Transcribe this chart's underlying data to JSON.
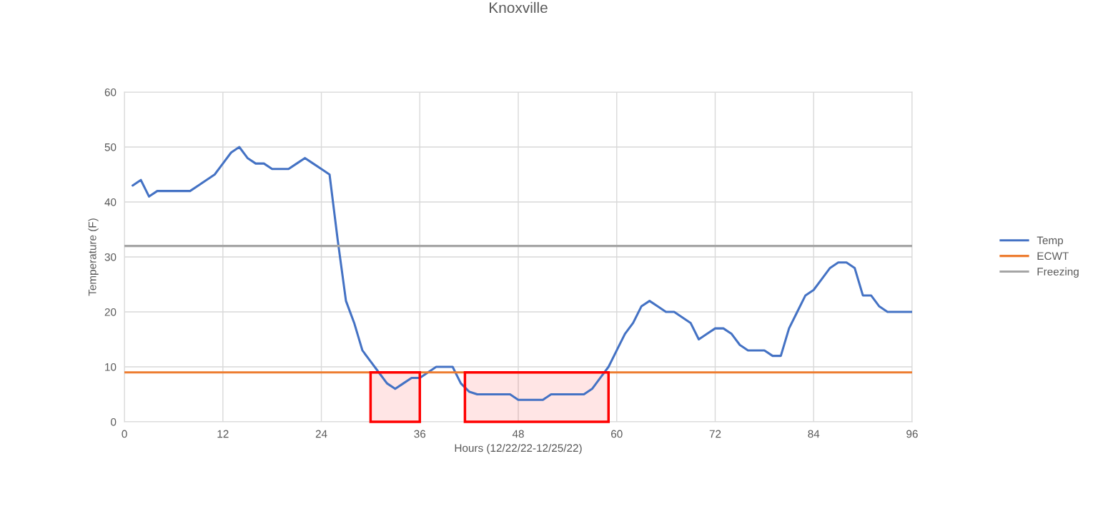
{
  "chart_data": {
    "type": "line",
    "title": "Knoxville",
    "xlabel": "Hours (12/22/22-12/25/22)",
    "ylabel": "Temperature (F)",
    "xlim": [
      0,
      96
    ],
    "xticks": [
      0,
      12,
      24,
      36,
      48,
      60,
      72,
      84,
      96
    ],
    "ylim": [
      0,
      60
    ],
    "yticks": [
      0,
      10,
      20,
      30,
      40,
      50,
      60
    ],
    "grid": true,
    "legend": "right",
    "line_style": "solid",
    "marker": "none",
    "series": [
      {
        "name": "Temp",
        "color": "#4472c4",
        "x": [
          1,
          2,
          3,
          4,
          5,
          6,
          7,
          8,
          9,
          10,
          11,
          12,
          13,
          14,
          15,
          16,
          17,
          18,
          19,
          20,
          21,
          22,
          23,
          24,
          25,
          26,
          27,
          28,
          29,
          30,
          31,
          32,
          33,
          34,
          35,
          36,
          37,
          38,
          39,
          40,
          41,
          42,
          43,
          44,
          45,
          46,
          47,
          48,
          49,
          50,
          51,
          52,
          53,
          54,
          55,
          56,
          57,
          58,
          59,
          60,
          61,
          62,
          63,
          64,
          65,
          66,
          67,
          68,
          69,
          70,
          71,
          72,
          73,
          74,
          75,
          76,
          77,
          78,
          79,
          80,
          81,
          82,
          83,
          84,
          85,
          86,
          87,
          88,
          89,
          90,
          91,
          92,
          93,
          94,
          95,
          96
        ],
        "values": [
          43,
          44,
          41,
          42,
          42,
          42,
          42,
          42,
          43,
          44,
          45,
          47,
          49,
          50,
          48,
          47,
          47,
          46,
          46,
          46,
          47,
          48,
          47,
          46,
          45,
          33,
          22,
          18,
          13,
          11,
          9,
          7,
          6,
          7,
          8,
          8,
          9,
          10,
          10,
          10,
          7,
          5.5,
          5,
          5,
          5,
          5,
          5,
          4,
          4,
          4,
          4,
          5,
          5,
          5,
          5,
          5,
          6,
          8,
          10,
          13,
          16,
          18,
          21,
          22,
          21,
          20,
          20,
          19,
          18,
          15,
          16,
          17,
          17,
          16,
          14,
          13,
          13,
          13,
          12,
          12,
          17,
          20,
          23,
          24,
          26,
          28,
          29,
          29,
          28,
          23,
          23,
          21,
          20,
          20,
          20,
          20
        ]
      },
      {
        "name": "ECWT",
        "color": "#ed7d31",
        "x": [
          0,
          96
        ],
        "values": [
          9,
          9
        ]
      },
      {
        "name": "Freezing",
        "color": "#a5a5a5",
        "x": [
          0,
          96
        ],
        "values": [
          32,
          32
        ]
      }
    ],
    "bands": [
      {
        "axis": "x",
        "from": 30,
        "to": 36,
        "color": "#ff0000"
      },
      {
        "axis": "x",
        "from": 41.5,
        "to": 59,
        "color": "#ff0000"
      }
    ]
  }
}
